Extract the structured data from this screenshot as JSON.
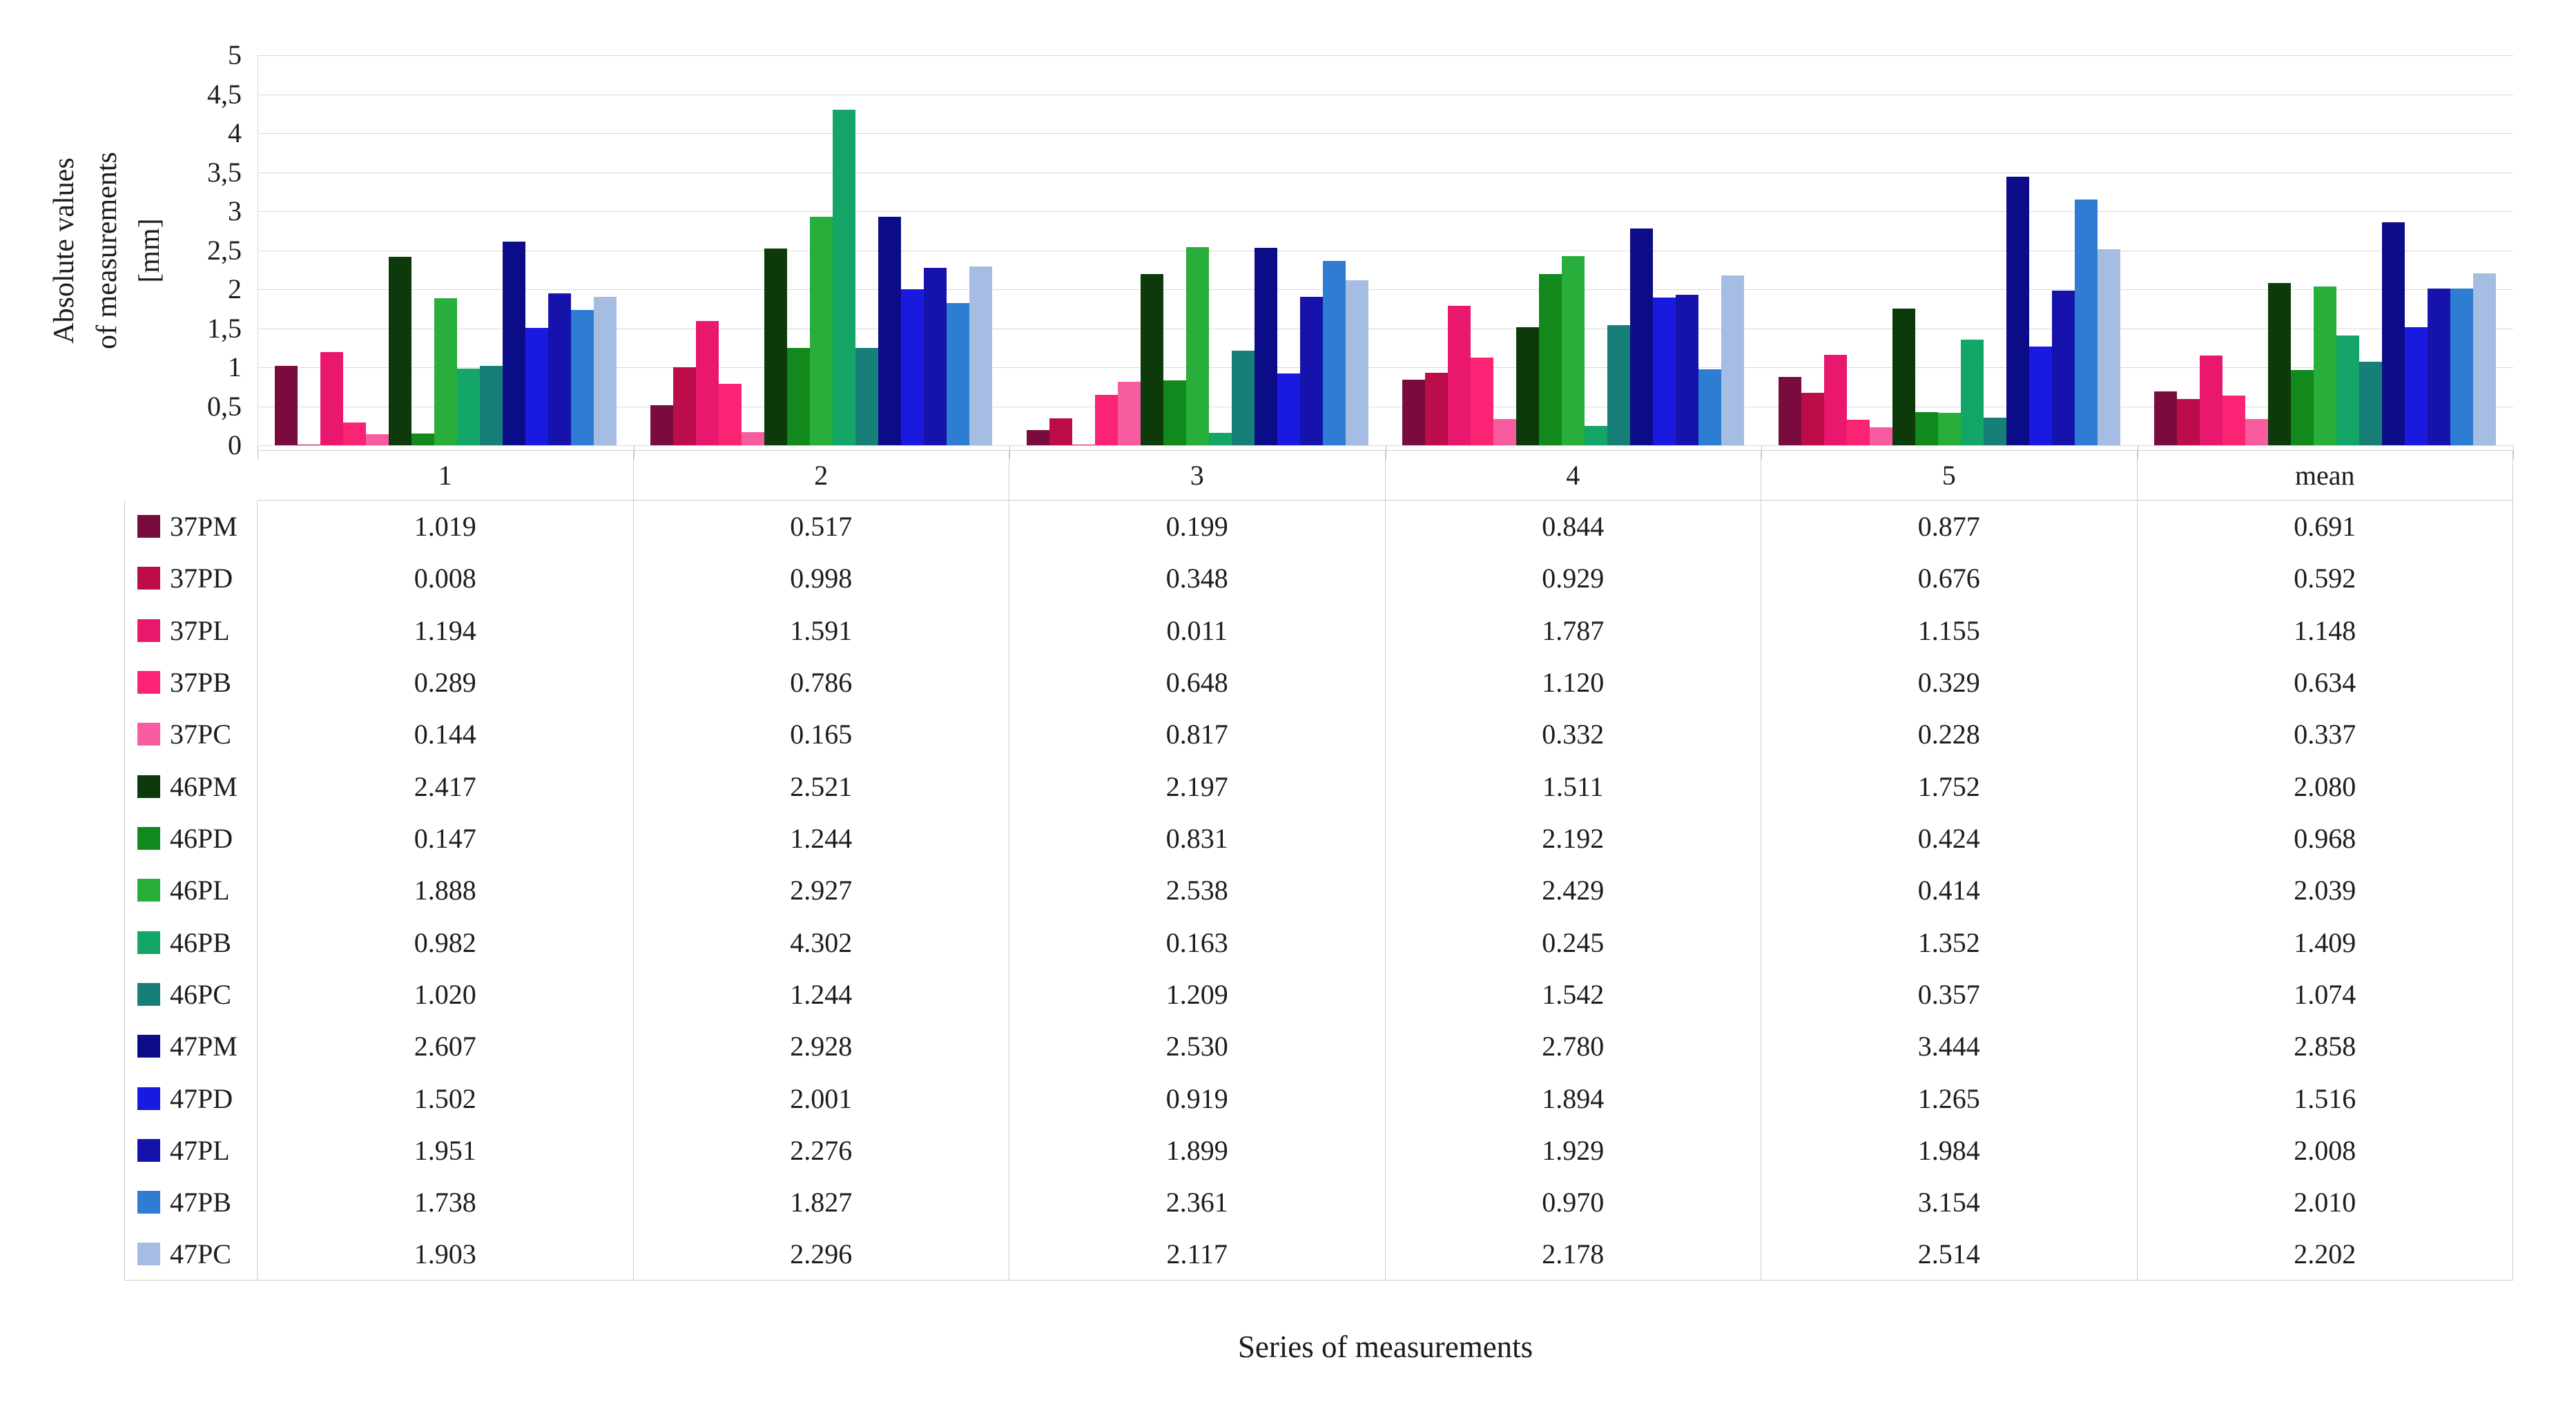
{
  "figure": {
    "y_axis": {
      "title_lines": [
        "Absolute values",
        "of measurements",
        "[mm]"
      ],
      "ticks": [
        "5",
        "4,5",
        "4",
        "3,5",
        "3",
        "2,5",
        "2",
        "1,5",
        "1",
        "0,5",
        "0"
      ]
    },
    "x_axis": {
      "title": "Series of measurements"
    }
  },
  "chart_data": {
    "type": "bar",
    "title": "",
    "xlabel": "Series of measurements",
    "ylabel": "Absolute values of measurements [mm]",
    "ylim": [
      0,
      5
    ],
    "ytick_step": 0.5,
    "ytick_labels": [
      "5",
      "4,5",
      "4",
      "3,5",
      "3",
      "2,5",
      "2",
      "1,5",
      "1",
      "0,5",
      "0"
    ],
    "grid": true,
    "legend_position": "table-left-column",
    "categories": [
      "1",
      "2",
      "3",
      "4",
      "5",
      "mean"
    ],
    "series": [
      {
        "name": "37PM",
        "color": "#7a0b3e",
        "values": [
          "1.019",
          "0.517",
          "0.199",
          "0.844",
          "0.877",
          "0.691"
        ]
      },
      {
        "name": "37PD",
        "color": "#bc0c49",
        "values": [
          "0.008",
          "0.998",
          "0.348",
          "0.929",
          "0.676",
          "0.592"
        ]
      },
      {
        "name": "37PL",
        "color": "#e9176e",
        "values": [
          "1.194",
          "1.591",
          "0.011",
          "1.787",
          "1.155",
          "1.148"
        ]
      },
      {
        "name": "37PB",
        "color": "#fb2374",
        "values": [
          "0.289",
          "0.786",
          "0.648",
          "1.120",
          "0.329",
          "0.634"
        ]
      },
      {
        "name": "37PC",
        "color": "#f75ca1",
        "values": [
          "0.144",
          "0.165",
          "0.817",
          "0.332",
          "0.228",
          "0.337"
        ]
      },
      {
        "name": "46PM",
        "color": "#0c3a0b",
        "values": [
          "2.417",
          "2.521",
          "2.197",
          "1.511",
          "1.752",
          "2.080"
        ]
      },
      {
        "name": "46PD",
        "color": "#11891d",
        "values": [
          "0.147",
          "1.244",
          "0.831",
          "2.192",
          "0.424",
          "0.968"
        ]
      },
      {
        "name": "46PL",
        "color": "#29ae3b",
        "values": [
          "1.888",
          "2.927",
          "2.538",
          "2.429",
          "0.414",
          "2.039"
        ]
      },
      {
        "name": "46PB",
        "color": "#14a569",
        "values": [
          "0.982",
          "4.302",
          "0.163",
          "0.245",
          "1.352",
          "1.409"
        ]
      },
      {
        "name": "46PC",
        "color": "#168078",
        "values": [
          "1.020",
          "1.244",
          "1.209",
          "1.542",
          "0.357",
          "1.074"
        ]
      },
      {
        "name": "47PM",
        "color": "#0c0c88",
        "values": [
          "2.607",
          "2.928",
          "2.530",
          "2.780",
          "3.444",
          "2.858"
        ]
      },
      {
        "name": "47PD",
        "color": "#1919df",
        "values": [
          "1.502",
          "2.001",
          "0.919",
          "1.894",
          "1.265",
          "1.516"
        ]
      },
      {
        "name": "47PL",
        "color": "#1513ac",
        "values": [
          "1.951",
          "2.276",
          "1.899",
          "1.929",
          "1.984",
          "2.008"
        ]
      },
      {
        "name": "47PB",
        "color": "#2f7cd3",
        "values": [
          "1.738",
          "1.827",
          "2.361",
          "0.970",
          "3.154",
          "2.010"
        ]
      },
      {
        "name": "47PC",
        "color": "#a5bde3",
        "values": [
          "1.903",
          "2.296",
          "2.117",
          "2.178",
          "2.514",
          "2.202"
        ]
      }
    ]
  }
}
